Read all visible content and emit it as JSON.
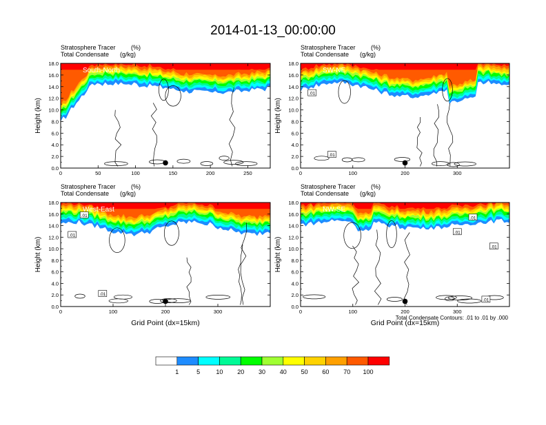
{
  "title": "2014-01-13_00:00:00",
  "panel_header": {
    "line1_label": "Stratosphere Tracer",
    "line1_unit": "(%)",
    "line2_label": "Total Condensate",
    "line2_unit": "(g/kg)"
  },
  "contour_note": "Total Condensate Contours: .01 to .01 by .000",
  "colors": {
    "levels": [
      "#ffffff",
      "#1e8cff",
      "#00ffff",
      "#00fa96",
      "#00ff00",
      "#a0ff32",
      "#ffff00",
      "#ffd200",
      "#ffa000",
      "#ff5a00",
      "#ff0000"
    ]
  },
  "chart_data": [
    {
      "type": "heatmap",
      "panel_label": "South-North",
      "ylabel": "Height (km)",
      "xlabel": "",
      "ylim": [
        0,
        18
      ],
      "xlim": [
        0,
        280
      ],
      "yticks": [
        "0.0",
        "2.0",
        "4.0",
        "6.0",
        "8.0",
        "10.0",
        "12.0",
        "14.0",
        "16.0",
        "18.0"
      ],
      "xticks": [
        {
          "v": 0,
          "label": "0"
        },
        {
          "v": 50,
          "label": "50"
        },
        {
          "v": 100,
          "label": "100"
        },
        {
          "v": 150,
          "label": "150"
        },
        {
          "v": 200,
          "label": "200"
        },
        {
          "v": 250,
          "label": "250"
        }
      ],
      "marker_x": 140,
      "contour_labels": []
    },
    {
      "type": "heatmap",
      "panel_label": "SW-NE",
      "ylabel": "Height (km)",
      "xlabel": "",
      "ylim": [
        0,
        18
      ],
      "xlim": [
        0,
        400
      ],
      "yticks": [
        "0.0",
        "2.0",
        "4.0",
        "6.0",
        "8.0",
        "10.0",
        "12.0",
        "14.0",
        "16.0",
        "18.0"
      ],
      "xticks": [
        {
          "v": 0,
          "label": "0"
        },
        {
          "v": 100,
          "label": "100"
        },
        {
          "v": 200,
          "label": "200"
        },
        {
          "v": 300,
          "label": "300"
        }
      ],
      "marker_x": 200,
      "contour_labels": [
        {
          "x": 22,
          "y": 12.9,
          "label": ".01"
        },
        {
          "x": 60,
          "y": 2.3,
          "label": ".01"
        }
      ]
    },
    {
      "type": "heatmap",
      "panel_label": "West-East",
      "ylabel": "Height (km)",
      "xlabel": "Grid Point (dx=15km)",
      "ylim": [
        0,
        18
      ],
      "xlim": [
        0,
        400
      ],
      "yticks": [
        "0.0",
        "2.0",
        "4.0",
        "6.0",
        "8.0",
        "10.0",
        "12.0",
        "14.0",
        "16.0",
        "18.0"
      ],
      "xticks": [
        {
          "v": 0,
          "label": "0"
        },
        {
          "v": 100,
          "label": "100"
        },
        {
          "v": 200,
          "label": "200"
        },
        {
          "v": 300,
          "label": "300"
        }
      ],
      "marker_x": 200,
      "contour_labels": [
        {
          "x": 45,
          "y": 15.8,
          "label": ".01"
        },
        {
          "x": 22,
          "y": 12.4,
          "label": ".01"
        },
        {
          "x": 80,
          "y": 2.2,
          "label": ".01"
        }
      ]
    },
    {
      "type": "heatmap",
      "panel_label": "NW-SE",
      "ylabel": "Height (km)",
      "xlabel": "Grid Point (dx=15km)",
      "ylim": [
        0,
        18
      ],
      "xlim": [
        0,
        400
      ],
      "yticks": [
        "0.0",
        "2.0",
        "4.0",
        "6.0",
        "8.0",
        "10.0",
        "12.0",
        "14.0",
        "16.0",
        "18.0"
      ],
      "xticks": [
        {
          "v": 0,
          "label": "0"
        },
        {
          "v": 100,
          "label": "100"
        },
        {
          "v": 200,
          "label": "200"
        },
        {
          "v": 300,
          "label": "300"
        }
      ],
      "marker_x": 200,
      "contour_labels": [
        {
          "x": 330,
          "y": 15.4,
          "label": ".01"
        },
        {
          "x": 300,
          "y": 12.9,
          "label": ".01"
        },
        {
          "x": 370,
          "y": 10.4,
          "label": ".01"
        },
        {
          "x": 355,
          "y": 1.2,
          "label": ".01"
        }
      ]
    }
  ],
  "colorbar": {
    "labels": [
      "1",
      "5",
      "10",
      "20",
      "30",
      "40",
      "50",
      "60",
      "70",
      "100"
    ]
  }
}
